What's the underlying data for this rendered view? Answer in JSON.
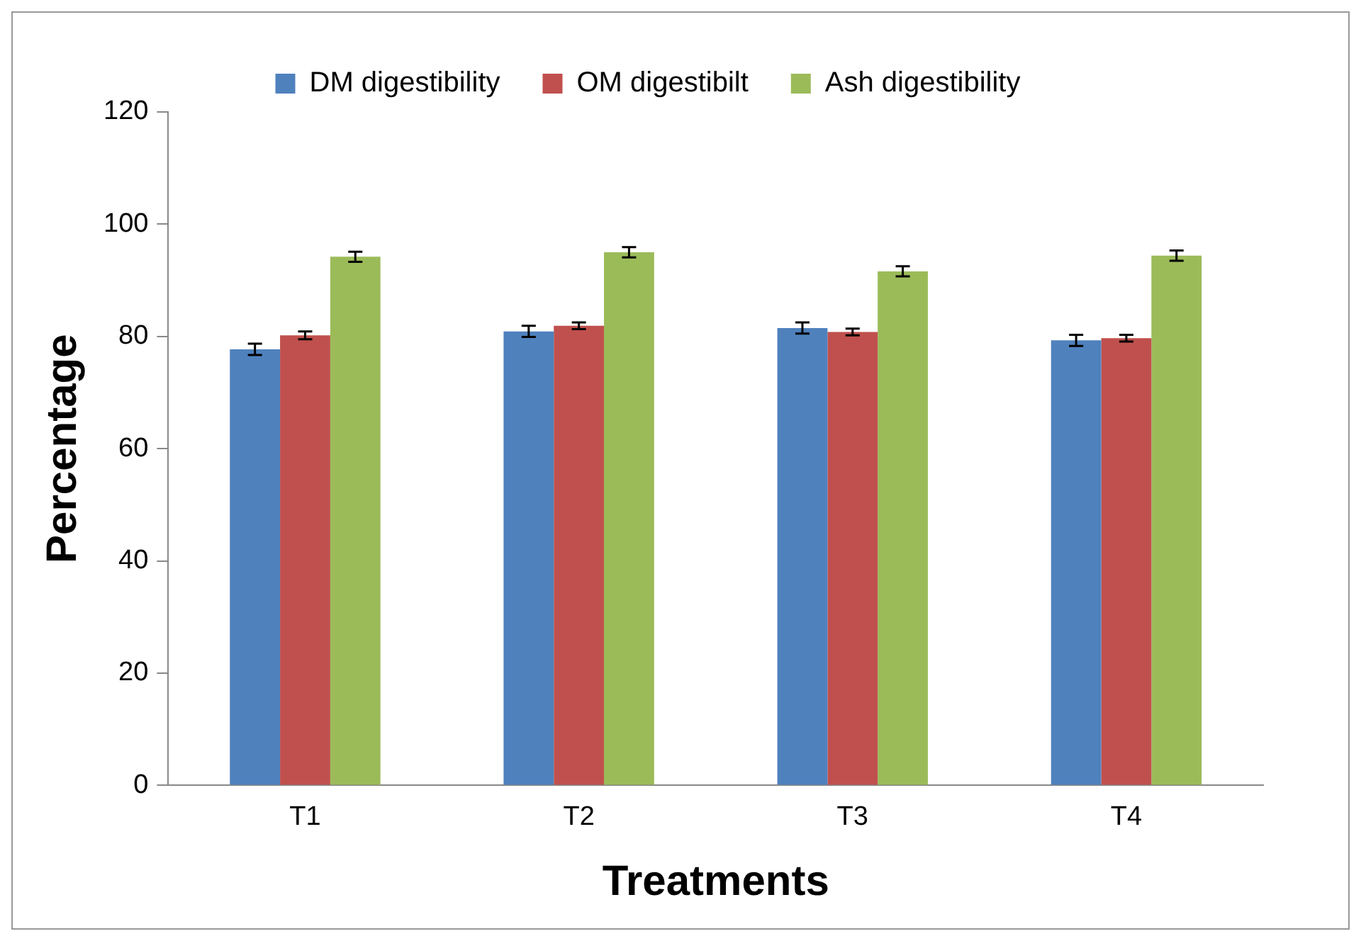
{
  "chart_data": {
    "type": "bar",
    "xlabel": "Treatments",
    "ylabel": "Percentage",
    "categories": [
      "T1",
      "T2",
      "T3",
      "T4"
    ],
    "series": [
      {
        "name": "DM digestibility",
        "color": "#4f81bd",
        "values": [
          77.7,
          80.9,
          81.5,
          79.3
        ],
        "errors": [
          1.0,
          1.0,
          1.0,
          1.0
        ]
      },
      {
        "name": "OM digestibilt",
        "color": "#c0504d",
        "values": [
          80.2,
          81.9,
          80.8,
          79.7
        ],
        "errors": [
          0.7,
          0.6,
          0.6,
          0.6
        ]
      },
      {
        "name": "Ash digestibility",
        "color": "#9bbb59",
        "values": [
          94.2,
          95.0,
          91.6,
          94.4
        ],
        "errors": [
          0.9,
          0.9,
          0.9,
          0.9
        ]
      }
    ],
    "ylim": [
      0,
      120
    ],
    "yticks": [
      0,
      20,
      40,
      60,
      80,
      100,
      120
    ],
    "grid": false,
    "legend": "top"
  }
}
